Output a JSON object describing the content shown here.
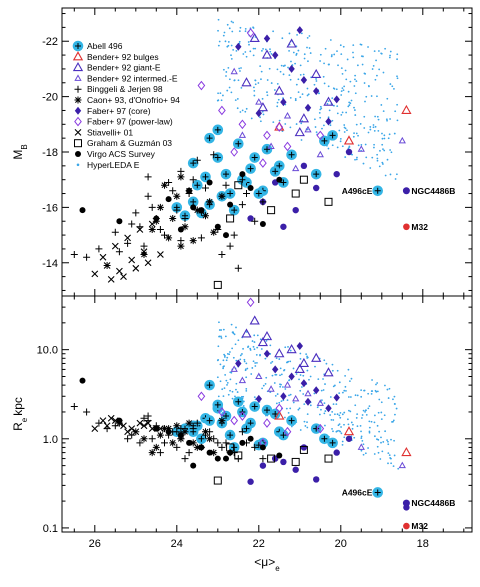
{
  "chart_data": [
    {
      "panel": "top",
      "type": "scatter",
      "ylabel": "M_B",
      "x_reversed": true,
      "y_reversed": true,
      "xlim": [
        26.8,
        16.8
      ],
      "ylim": [
        -12.8,
        -23.2
      ],
      "xticks": [
        26,
        24,
        22,
        20,
        18
      ],
      "yticks": [
        -22,
        -20,
        -18,
        -16,
        -14
      ],
      "ytick_labels": [
        "-22",
        "-20",
        "-18",
        "-16",
        "-14"
      ],
      "legend_position": "top-left",
      "series": [
        {
          "name": "Abell 496",
          "color": "#33b5e5",
          "marker": "circle-large",
          "x": [
            23.2,
            23.0,
            22.8,
            22.5,
            22.2,
            21.8,
            21.5,
            21.2,
            23.5,
            23.3,
            22.7,
            22.3,
            21.9,
            23.6,
            23.4,
            22.9,
            22.6,
            22.1,
            21.6,
            23.8,
            23.2,
            22.4,
            20.4,
            20.2,
            24.0,
            23.6,
            23.0,
            22.0,
            21.4,
            20.6
          ],
          "y": [
            -18.5,
            -17.8,
            -17.2,
            -18.3,
            -17.4,
            -18.1,
            -17.5,
            -17.9,
            -16.8,
            -17.1,
            -16.5,
            -16.9,
            -16.6,
            -16.2,
            -15.8,
            -16.4,
            -15.9,
            -17.8,
            -17.3,
            -15.7,
            -16.1,
            -17.0,
            -18.4,
            -18.6,
            -16.0,
            -17.6,
            -18.8,
            -16.5,
            -16.9,
            -17.2
          ]
        },
        {
          "name": "Bender+ 92 bulges",
          "color": "#e03030",
          "marker": "triangle",
          "x": [
            18.4,
            21.5,
            19.8
          ],
          "y": [
            -19.5,
            -18.9,
            -18.4
          ]
        },
        {
          "name": "Bender+ 92 giant-E",
          "color": "#4b2fbf",
          "marker": "triangle",
          "x": [
            21.8,
            21.2,
            20.6,
            22.3,
            21.9,
            20.9,
            21.5,
            22.1,
            20.3,
            21.0
          ],
          "y": [
            -21.5,
            -21.9,
            -20.8,
            -20.5,
            -19.6,
            -19.2,
            -20.2,
            -22.1,
            -19.8,
            -18.7
          ]
        },
        {
          "name": "Bender+ 92 intermed.-E",
          "color": "#6a4bd6",
          "marker": "triangle-small",
          "x": [
            22.6,
            22.0,
            21.3,
            20.8,
            21.7,
            22.4,
            20.5,
            21.1,
            18.5,
            19.5
          ],
          "y": [
            -20.9,
            -19.8,
            -19.3,
            -18.8,
            -18.2,
            -18.6,
            -17.9,
            -17.4,
            -18.4,
            -18.1
          ]
        },
        {
          "name": "Binggeli & Jerjen 98",
          "color": "#000000",
          "marker": "plus",
          "x": [
            26.2,
            25.9,
            25.5,
            25.0,
            24.7,
            24.2,
            23.9,
            23.5,
            23.1,
            22.8,
            22.4,
            22.1,
            25.7,
            25.2,
            24.9,
            24.5,
            24.0,
            23.7,
            23.3,
            23.0,
            22.6,
            24.8,
            24.3,
            23.8,
            23.4,
            22.9,
            25.4,
            24.6,
            24.1,
            23.6,
            22.3,
            21.9,
            25.1,
            24.4,
            23.9,
            22.7,
            24.7,
            23.2,
            22.5,
            26.5
          ],
          "y": [
            -14.2,
            -14.5,
            -15.1,
            -15.8,
            -16.4,
            -16.9,
            -17.3,
            -17.7,
            -17.9,
            -16.8,
            -16.1,
            -15.5,
            -13.9,
            -14.7,
            -15.3,
            -15.6,
            -15.9,
            -16.5,
            -16.7,
            -15.2,
            -15.0,
            -14.6,
            -15.0,
            -15.6,
            -14.9,
            -14.3,
            -14.4,
            -16.0,
            -16.6,
            -17.0,
            -16.5,
            -16.2,
            -15.4,
            -15.2,
            -14.8,
            -14.6,
            -17.1,
            -16.2,
            -13.8,
            -14.3
          ]
        },
        {
          "name": "Caon+ 93, d'Onofrio+ 94",
          "color": "#000000",
          "marker": "asterisk",
          "x": [
            24.4,
            24.1,
            23.8,
            23.5,
            23.2,
            24.6,
            24.2,
            23.9,
            23.6,
            24.0,
            23.3,
            24.8,
            24.5,
            23.7,
            23.1,
            24.3,
            23.9,
            22.9
          ],
          "y": [
            -16.0,
            -15.6,
            -15.3,
            -15.9,
            -16.2,
            -15.2,
            -14.9,
            -14.6,
            -14.8,
            -16.4,
            -15.7,
            -14.3,
            -15.5,
            -16.6,
            -15.1,
            -16.8,
            -17.1,
            -16.4
          ]
        },
        {
          "name": "Faber+ 97 (core)",
          "color": "#3b1fa8",
          "marker": "diamond",
          "x": [
            21.6,
            21.2,
            20.9,
            20.6,
            21.4,
            22.0,
            20.3,
            21.8,
            22.5,
            21.0,
            20.8,
            20.1
          ],
          "y": [
            -21.5,
            -21.0,
            -20.6,
            -20.2,
            -19.8,
            -19.4,
            -19.1,
            -22.1,
            -21.8,
            -22.4,
            -19.6,
            -19.9
          ]
        },
        {
          "name": "Faber+ 97 (power-law)",
          "color": "#8a3be0",
          "marker": "diamond-open",
          "x": [
            22.9,
            22.4,
            21.8,
            21.3,
            22.6,
            23.4,
            20.5,
            21.9,
            22.2,
            21.5
          ],
          "y": [
            -19.5,
            -19.0,
            -18.6,
            -18.2,
            -18.0,
            -20.4,
            -18.6,
            -17.6,
            -22.3,
            -18.9
          ]
        },
        {
          "name": "Stiavelli+ 01",
          "color": "#000000",
          "marker": "cross",
          "x": [
            26.0,
            25.7,
            25.4,
            25.1,
            24.8,
            25.5,
            25.2,
            24.9,
            24.6,
            25.8,
            25.3,
            25.0,
            24.7,
            24.4,
            25.6
          ],
          "y": [
            -13.6,
            -13.9,
            -13.7,
            -14.1,
            -14.4,
            -14.6,
            -14.9,
            -15.2,
            -15.4,
            -14.2,
            -13.5,
            -13.8,
            -14.0,
            -14.3,
            -13.4
          ]
        },
        {
          "name": "Graham & Guzmán 03",
          "color": "#000000",
          "marker": "square",
          "x": [
            23.0,
            22.7,
            21.7,
            21.1,
            20.3,
            20.9,
            22.5
          ],
          "y": [
            -13.2,
            -15.6,
            -15.9,
            -16.5,
            -16.2,
            -17.0,
            -16.8
          ]
        },
        {
          "name": "Virgo ACS Survey",
          "color": "#000000",
          "marker": "dot",
          "x": [
            26.3,
            25.4,
            24.2,
            23.7,
            23.4,
            23.0,
            22.7,
            22.2,
            21.9,
            23.9,
            23.2,
            22.4,
            24.5,
            23.6,
            22.8,
            21.5
          ],
          "y": [
            -15.9,
            -15.5,
            -16.3,
            -16.6,
            -15.9,
            -15.3,
            -16.1,
            -16.7,
            -15.4,
            -15.2,
            -16.9,
            -17.2,
            -15.6,
            -16.0,
            -15.0,
            -17.0
          ]
        },
        {
          "name": "HyperLEDA E",
          "color": "#3aa6e8",
          "marker": "dot-small",
          "x": [],
          "y": []
        }
      ],
      "extra_purple_dots": {
        "color": "#3b1fa8",
        "x": [
          21.4,
          21.1,
          20.6,
          21.9,
          22.2,
          18.4,
          20.1,
          20.9,
          19.8,
          21.6
        ],
        "y": [
          -15.3,
          -15.9,
          -16.7,
          -16.2,
          -15.6,
          -16.6,
          -17.2,
          -17.5,
          -18.0,
          -16.9
        ]
      },
      "annotations": [
        {
          "text": "A496cE",
          "x": 19.1,
          "y": -16.6,
          "color": "#33b5e5"
        },
        {
          "text": "NGC4486B",
          "x": 18.4,
          "y": -16.6,
          "color": "#3b1fa8"
        },
        {
          "text": "M32",
          "x": 18.4,
          "y": -15.3,
          "color": "#e03030"
        }
      ]
    },
    {
      "panel": "bottom",
      "type": "scatter",
      "xlabel": "<μ>_e",
      "ylabel": "R_e kpc",
      "x_reversed": true,
      "y_scale": "log",
      "xlim": [
        26.8,
        16.8
      ],
      "ylim": [
        0.09,
        40
      ],
      "xticks": [
        26,
        24,
        22,
        20,
        18
      ],
      "yticks": [
        0.1,
        1.0,
        10.0
      ],
      "ytick_labels": [
        "0.1",
        "1.0",
        "10.0"
      ],
      "series": [
        {
          "name": "Abell 496",
          "color": "#33b5e5",
          "marker": "circle-large",
          "x": [
            23.2,
            23.0,
            22.8,
            22.5,
            22.2,
            21.8,
            21.5,
            21.2,
            23.5,
            23.3,
            22.7,
            22.3,
            21.9,
            23.6,
            23.4,
            22.9,
            22.6,
            22.1,
            21.6,
            23.8,
            23.2,
            22.4,
            20.4,
            20.2,
            24.0,
            23.6,
            23.0,
            22.0,
            21.4,
            20.6
          ],
          "y": [
            4.0,
            2.2,
            1.8,
            2.6,
            1.5,
            2.1,
            1.2,
            1.6,
            1.4,
            1.7,
            1.1,
            1.3,
            0.9,
            1.2,
            1.0,
            1.5,
            0.8,
            2.3,
            1.9,
            1.3,
            1.6,
            2.0,
            1.0,
            0.9,
            1.2,
            1.4,
            2.4,
            0.85,
            1.1,
            1.3
          ]
        },
        {
          "name": "Bender+ 92 bulges",
          "color": "#e03030",
          "marker": "triangle",
          "x": [
            18.4,
            21.5,
            19.8
          ],
          "y": [
            0.7,
            1.8,
            1.2
          ]
        },
        {
          "name": "Bender+ 92 giant-E",
          "color": "#4b2fbf",
          "marker": "triangle",
          "x": [
            21.8,
            21.2,
            20.6,
            22.3,
            21.9,
            20.9,
            21.5,
            22.1,
            20.3,
            21.0
          ],
          "y": [
            14,
            10,
            8,
            15,
            12,
            7,
            9,
            21,
            5.5,
            6
          ]
        },
        {
          "name": "Bender+ 92 intermed.-E",
          "color": "#6a4bd6",
          "marker": "triangle-small",
          "x": [
            22.6,
            22.0,
            21.3,
            20.8,
            21.7,
            22.4,
            20.5,
            21.1,
            18.5,
            19.5
          ],
          "y": [
            6,
            5,
            4,
            3.2,
            3.6,
            4.5,
            2.5,
            2.8,
            0.5,
            0.8
          ]
        },
        {
          "name": "Binggeli & Jerjen 98",
          "color": "#000000",
          "marker": "plus",
          "x": [
            26.2,
            25.9,
            25.5,
            25.0,
            24.7,
            24.2,
            23.9,
            23.5,
            23.1,
            22.8,
            22.4,
            22.1,
            25.7,
            25.2,
            24.9,
            24.5,
            24.0,
            23.7,
            23.3,
            23.0,
            22.6,
            24.8,
            24.3,
            23.8,
            23.4,
            22.9,
            25.4,
            24.6,
            24.1,
            23.6,
            22.3,
            21.9,
            25.1,
            24.4,
            23.9,
            22.7,
            24.7,
            23.2,
            22.5,
            26.5
          ],
          "y": [
            2.0,
            1.5,
            1.4,
            1.2,
            1.6,
            1.1,
            1.3,
            1.5,
            1.0,
            0.9,
            1.2,
            0.8,
            1.3,
            1.0,
            0.9,
            1.4,
            0.8,
            0.7,
            1.1,
            0.9,
            0.7,
            1.7,
            0.9,
            0.6,
            0.8,
            0.8,
            1.5,
            1.0,
            1.2,
            1.3,
            0.9,
            0.6,
            1.1,
            0.7,
            1.0,
            0.7,
            1.8,
            1.2,
            0.6,
            2.3
          ]
        },
        {
          "name": "Caon+ 93, d'Onofrio+ 94",
          "color": "#000000",
          "marker": "asterisk",
          "x": [
            24.4,
            24.1,
            23.8,
            23.5,
            23.2,
            24.6,
            24.2,
            23.9,
            23.6,
            24.0,
            23.3,
            24.8,
            24.5,
            23.7,
            23.1,
            24.3,
            23.9,
            22.9
          ],
          "y": [
            1.1,
            0.9,
            1.2,
            0.8,
            1.0,
            0.7,
            1.3,
            1.1,
            0.9,
            1.4,
            1.2,
            1.0,
            0.8,
            1.5,
            0.7,
            1.3,
            1.0,
            1.6
          ]
        },
        {
          "name": "Faber+ 97 (core)",
          "color": "#3b1fa8",
          "marker": "diamond",
          "x": [
            21.6,
            21.2,
            20.9,
            20.6,
            21.4,
            22.0,
            20.3,
            21.8,
            22.5,
            21.0,
            20.8,
            20.1
          ],
          "y": [
            6,
            5,
            4.2,
            3.5,
            3,
            2.8,
            2.2,
            9,
            7,
            11,
            2.6,
            2.9
          ]
        },
        {
          "name": "Faber+ 97 (power-law)",
          "color": "#8a3be0",
          "marker": "diamond-open",
          "x": [
            22.9,
            22.4,
            21.8,
            21.3,
            22.6,
            23.4,
            20.5,
            21.9,
            22.2,
            21.5
          ],
          "y": [
            2.0,
            1.8,
            1.5,
            1.2,
            1.6,
            3.0,
            1.3,
            0.9,
            34,
            2.2
          ]
        },
        {
          "name": "Stiavelli+ 01",
          "color": "#000000",
          "marker": "cross",
          "x": [
            26.0,
            25.7,
            25.4,
            25.1,
            24.8,
            25.5,
            25.2,
            24.9,
            24.6,
            25.8,
            25.3,
            25.0,
            24.7,
            24.4,
            25.6
          ],
          "y": [
            1.3,
            1.4,
            1.5,
            1.3,
            1.4,
            1.6,
            1.2,
            1.5,
            1.3,
            1.6,
            1.4,
            1.2,
            1.5,
            1.3,
            1.7
          ]
        },
        {
          "name": "Graham & Guzmán 03",
          "color": "#000000",
          "marker": "square",
          "x": [
            23.0,
            22.7,
            21.7,
            21.1,
            20.3,
            20.9,
            22.5
          ],
          "y": [
            0.34,
            0.8,
            0.6,
            0.55,
            0.6,
            0.75,
            0.65
          ]
        },
        {
          "name": "Virgo ACS Survey",
          "color": "#000000",
          "marker": "dot",
          "x": [
            26.3,
            25.4,
            24.2,
            23.7,
            23.4,
            23.0,
            22.7,
            22.2,
            21.9,
            23.9,
            23.2,
            22.4,
            24.5,
            23.6,
            22.8,
            21.5
          ],
          "y": [
            4.5,
            1.6,
            1.2,
            0.9,
            0.8,
            0.6,
            0.7,
            1.0,
            0.8,
            1.1,
            0.7,
            0.9,
            1.3,
            0.5,
            0.6,
            0.65
          ]
        },
        {
          "name": "HyperLEDA E",
          "color": "#3aa6e8",
          "marker": "dot-small",
          "x": [],
          "y": []
        }
      ],
      "extra_purple_dots": {
        "color": "#3b1fa8",
        "x": [
          21.4,
          21.1,
          20.6,
          21.9,
          22.2,
          18.4,
          20.1,
          20.9,
          19.8,
          21.6
        ],
        "y": [
          0.55,
          0.45,
          0.35,
          0.5,
          0.33,
          0.17,
          0.7,
          0.8,
          1.0,
          0.6
        ]
      },
      "annotations": [
        {
          "text": "A496cE",
          "x": 19.1,
          "y": 0.25,
          "color": "#33b5e5"
        },
        {
          "text": "NGC4486B",
          "x": 18.4,
          "y": 0.19,
          "color": "#3b1fa8"
        },
        {
          "text": "M32",
          "x": 18.4,
          "y": 0.105,
          "color": "#e03030"
        }
      ]
    }
  ]
}
